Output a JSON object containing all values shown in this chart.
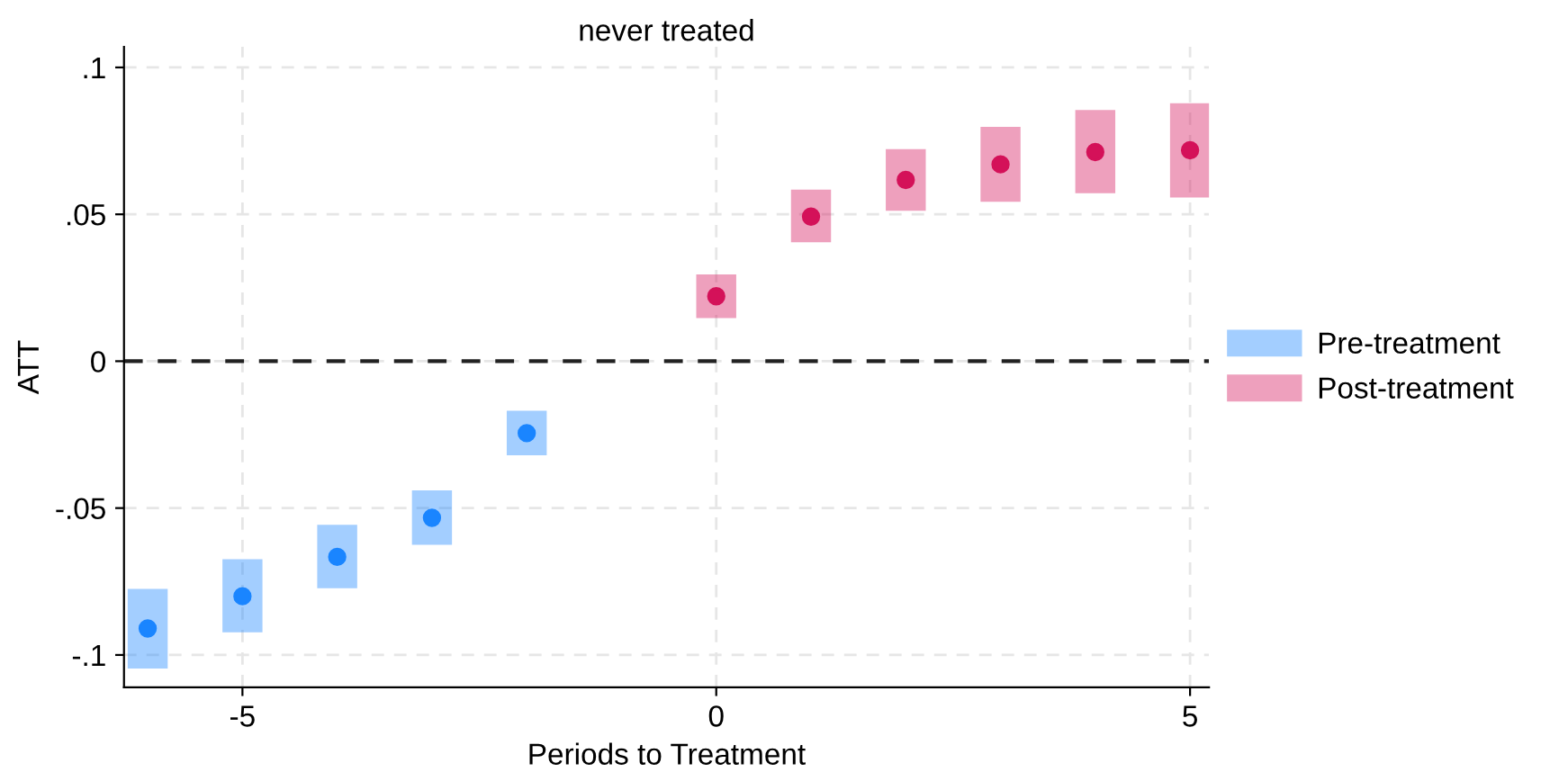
{
  "chart_data": {
    "type": "scatter",
    "title": "never treated",
    "xlabel": "Periods to Treatment",
    "ylabel": "ATT",
    "xlim": [
      -6.25,
      5.2
    ],
    "ylim": [
      -0.111,
      0.107
    ],
    "xticks": [
      -5,
      0,
      5
    ],
    "yticks": [
      {
        "value": 0.1,
        "label": ".1"
      },
      {
        "value": 0.05,
        "label": ".05"
      },
      0,
      {
        "value": -0.05,
        "label": "-.05"
      },
      {
        "value": -0.1,
        "label": "-.1"
      }
    ],
    "grid": true,
    "legend": "right",
    "marker": "circle",
    "ref_lines": [
      {
        "axis": "y",
        "value": 0,
        "color": "#222222",
        "line_style": "dashed"
      }
    ],
    "series": [
      {
        "name": "Pre-treatment",
        "color": "#1a85ff",
        "x": [
          -6,
          -5,
          -4,
          -3,
          -2
        ],
        "values": [
          -0.091,
          -0.08,
          -0.0666,
          -0.0533,
          -0.0245
        ],
        "errors": [
          [
            -0.1046,
            -0.0775
          ],
          [
            -0.0923,
            -0.0674
          ],
          [
            -0.0773,
            -0.0557
          ],
          [
            -0.0625,
            -0.044
          ],
          [
            -0.032,
            -0.0169
          ]
        ]
      },
      {
        "name": "Post-treatment",
        "color": "#d41159",
        "x": [
          0,
          1,
          2,
          3,
          4,
          5
        ],
        "values": [
          0.0221,
          0.0492,
          0.0617,
          0.067,
          0.0712,
          0.0718
        ],
        "errors": [
          [
            0.0147,
            0.0295
          ],
          [
            0.0405,
            0.0584
          ],
          [
            0.0512,
            0.0722
          ],
          [
            0.0543,
            0.0798
          ],
          [
            0.0572,
            0.0855
          ],
          [
            0.0557,
            0.0878
          ]
        ]
      }
    ]
  }
}
